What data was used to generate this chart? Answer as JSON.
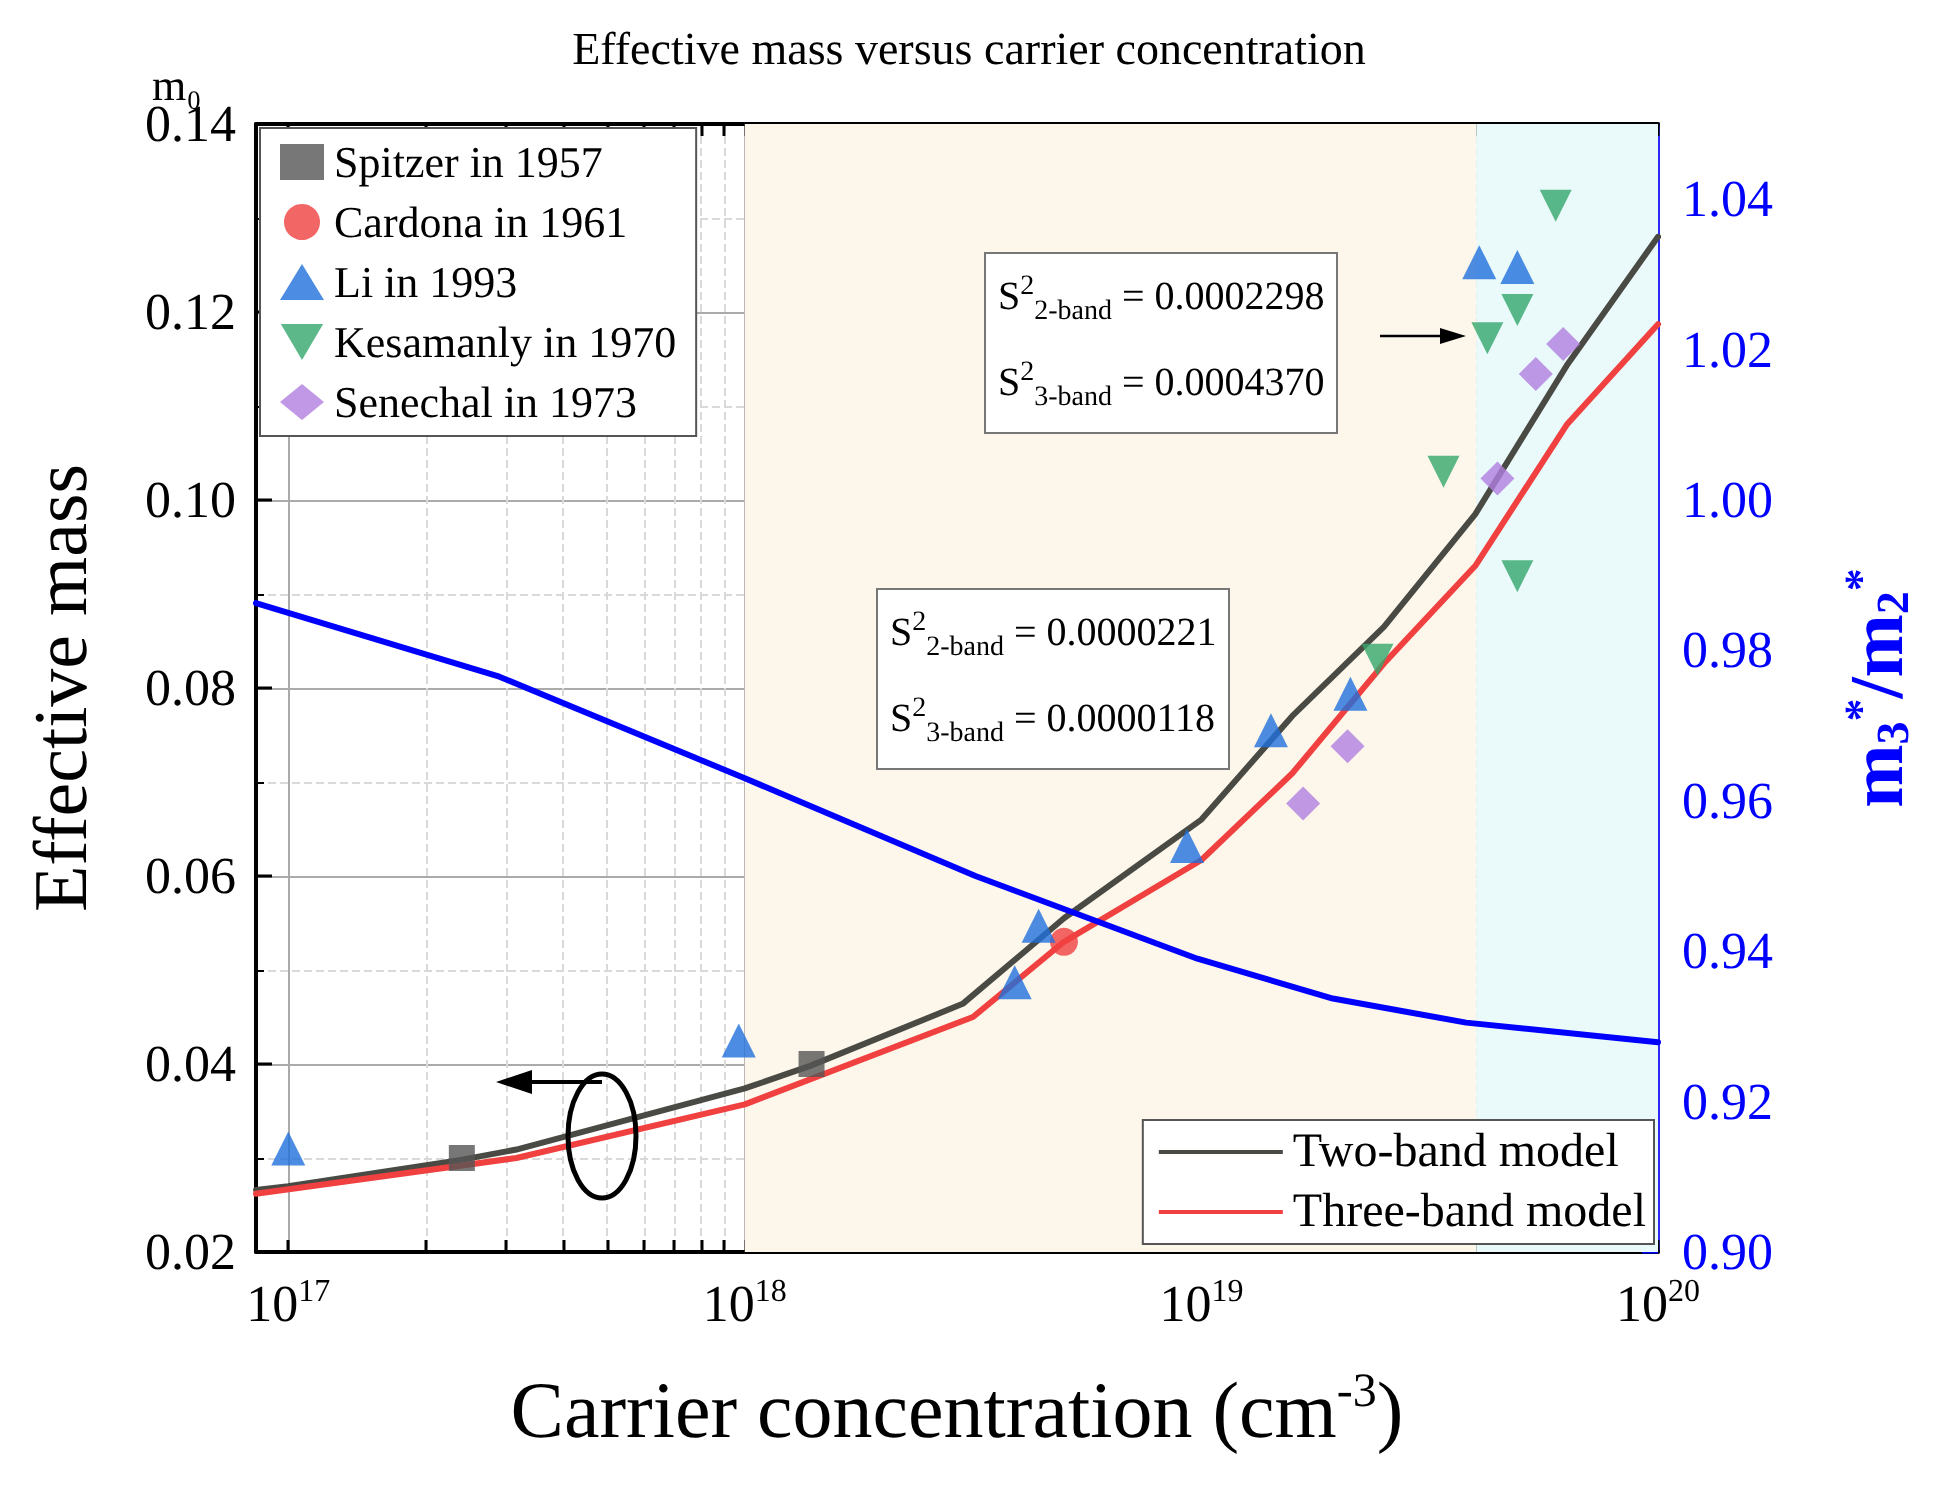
{
  "chart_data": {
    "type": "scatter",
    "title": "Effective mass versus carrier concentration",
    "xlabel": "Carrier concentration (cm$^{-3}$)",
    "ylabel": "Effective mass",
    "y2label": "m$_{3}$$^{*}$/m$_{2}$$^{*}$",
    "log": "x",
    "grid": true,
    "legend": "top left",
    "xlim": [
      8.5e+16,
      1e+20
    ],
    "xticks": [
      {
        "value": 1e+17,
        "label": "10$^{17}$"
      },
      {
        "value": 2e+17,
        "label": null
      },
      {
        "value": 3e+17,
        "label": null
      },
      {
        "value": 4e+17,
        "label": null
      },
      {
        "value": 5e+17,
        "label": null
      },
      {
        "value": 6e+17,
        "label": null
      },
      {
        "value": 7e+17,
        "label": null
      },
      {
        "value": 8e+17,
        "label": null
      },
      {
        "value": 9e+17,
        "label": null
      },
      {
        "value": 1e+18,
        "label": "10$^{18}$"
      },
      {
        "value": 2e+18,
        "label": null
      },
      {
        "value": 3e+18,
        "label": null
      },
      {
        "value": 4e+18,
        "label": null
      },
      {
        "value": 5e+18,
        "label": null
      },
      {
        "value": 6e+18,
        "label": null
      },
      {
        "value": 7e+18,
        "label": null
      },
      {
        "value": 8e+18,
        "label": null
      },
      {
        "value": 9e+18,
        "label": null
      },
      {
        "value": 1e+19,
        "label": "10$^{19}$"
      },
      {
        "value": 2e+19,
        "label": null
      },
      {
        "value": 3e+19,
        "label": null
      },
      {
        "value": 4e+19,
        "label": null
      },
      {
        "value": 5e+19,
        "label": null
      },
      {
        "value": 6e+19,
        "label": null
      },
      {
        "value": 7e+19,
        "label": null
      },
      {
        "value": 8e+19,
        "label": null
      },
      {
        "value": 9e+19,
        "label": null
      },
      {
        "value": 1e+20,
        "label": "10$^{20}$"
      }
    ],
    "ylim": [
      0.02,
      0.14
    ],
    "yticks": [
      0.02,
      0.04,
      0.06,
      0.08,
      {
        "value": 0.1,
        "label": "0.10"
      },
      0.12,
      0.14
    ],
    "y2lim": [
      0.9,
      1.05
    ],
    "y2ticks": [
      {
        "value": 0.9,
        "label": "0.90"
      },
      0.92,
      0.94,
      0.96,
      0.98,
      {
        "value": 1.0,
        "label": "1.00"
      },
      1.02,
      1.04
    ],
    "bands": [
      {
        "axis": "x",
        "from": 1e+18,
        "to": 4e+19,
        "color": "#fcf7ea"
      },
      {
        "axis": "x",
        "from": 4e+19,
        "to": 1e+20,
        "color": "#eafafa"
      }
    ],
    "annotations": [
      "m₀",
      "S$^{2}$$_{2-band}$ = 0.0002298",
      "S$^{2}$$_{3-band}$ = 0.0004370",
      "S$^{2}$$_{2-band}$ = 0.0000221",
      "S$^{2}$$_{3-band}$ = 0.0000118"
    ],
    "series": [
      {
        "name": "Spitzer in 1957",
        "color": "#555555",
        "marker": "square",
        "x": [
          2.4e+17,
          1.4e+18
        ],
        "values": [
          0.03,
          0.04
        ]
      },
      {
        "name": "Cardona in 1961",
        "color": "#f04040",
        "marker": "circle",
        "x": [
          5e+18
        ],
        "values": [
          0.053
        ]
      },
      {
        "name": "Li in 1993",
        "color": "#1f6fdc",
        "marker": "triangle",
        "x": [
          1e+17,
          9.7e+17,
          3.9e+18,
          4.4e+18,
          9.3e+18,
          1.42e+19,
          2.12e+19,
          4.06e+19,
          4.92e+19
        ],
        "values": [
          0.031,
          0.0425,
          0.0487,
          0.0547,
          0.0632,
          0.0755,
          0.0794,
          0.1253,
          0.1248
        ]
      },
      {
        "name": "Kesamanly in 1970",
        "color": "#33a66b",
        "marker": "triangle-down",
        "x": [
          5.97e+19,
          4.92e+19,
          4.23e+19,
          3.39e+19,
          4.92e+19,
          2.43e+19
        ],
        "values": [
          0.1313,
          0.1202,
          0.1172,
          0.103,
          0.0919,
          0.083
        ]
      },
      {
        "name": "Senechal in 1973",
        "color": "#b07ee0",
        "marker": "diamond",
        "x": [
          6.2e+19,
          5.4e+19,
          4.45e+19,
          2.09e+19,
          1.67e+19
        ],
        "values": [
          0.1166,
          0.1134,
          0.1023,
          0.0738,
          0.0677
        ]
      },
      {
        "name": "Two-band model",
        "type": "line",
        "color": "#4a4a44",
        "marker": "none",
        "x": [
          8.5e+16,
          1e+17,
          2.39e+17,
          3.16e+17,
          1e+18,
          1.39e+18,
          3e+18,
          5e+18,
          1e+19,
          1.58e+19,
          2.51e+19,
          3.98e+19,
          6.31e+19,
          1e+20
        ],
        "values": [
          0.0266,
          0.027,
          0.0298,
          0.0309,
          0.0374,
          0.0398,
          0.0464,
          0.0555,
          0.066,
          0.077,
          0.0865,
          0.0985,
          0.1143,
          0.128
        ]
      },
      {
        "name": "Three-band model",
        "type": "line",
        "color": "#f04040",
        "marker": "none",
        "x": [
          8.5e+16,
          3.16e+17,
          1e+18,
          3.16e+18,
          5e+18,
          1e+19,
          1.58e+19,
          2.51e+19,
          3.98e+19,
          6.31e+19,
          1e+20
        ],
        "values": [
          0.0262,
          0.03,
          0.0357,
          0.045,
          0.053,
          0.0617,
          0.0709,
          0.0826,
          0.093,
          0.108,
          0.1187
        ]
      },
      {
        "type": "line",
        "axis": "y2",
        "color": "#0000ff",
        "marker": "none",
        "x": [
          8.5e+16,
          2.9e+17,
          1e+18,
          3.2e+18,
          9.8e+18,
          1.94e+19,
          3.8e+19,
          1e+20
        ],
        "values": [
          0.9863,
          0.9765,
          0.963,
          0.95,
          0.939,
          0.9337,
          0.9305,
          0.9279
        ]
      }
    ]
  }
}
